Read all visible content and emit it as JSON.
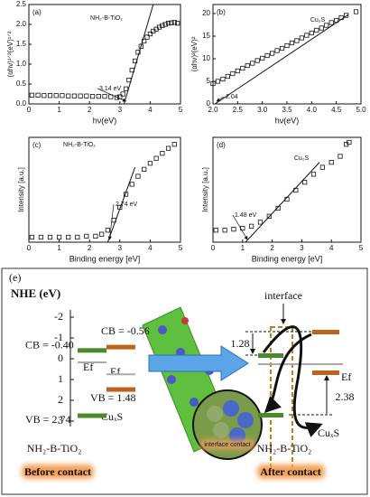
{
  "chart_data": [
    {
      "panel": "(a)",
      "type": "scatter",
      "xlabel": "hν(eV)",
      "ylabel": "(αhν)¹ᐟ²(eV)¹ᐟ²",
      "label": "NH₂-B-TiO₂",
      "annotation": "3.14 eV",
      "x": [
        0.1,
        0.3,
        0.5,
        0.7,
        0.9,
        1.1,
        1.3,
        1.5,
        1.7,
        1.9,
        2.1,
        2.3,
        2.5,
        2.7,
        2.9,
        3.0,
        3.1,
        3.2,
        3.3,
        3.4,
        3.5,
        3.6,
        3.7,
        3.8,
        3.9,
        4.0,
        4.1,
        4.2,
        4.3,
        4.4,
        4.5,
        4.6,
        4.7,
        4.8,
        4.9
      ],
      "values": [
        0.22,
        0.22,
        0.21,
        0.21,
        0.21,
        0.21,
        0.2,
        0.2,
        0.2,
        0.2,
        0.19,
        0.19,
        0.19,
        0.18,
        0.16,
        0.18,
        0.25,
        0.38,
        0.6,
        0.85,
        1.08,
        1.3,
        1.45,
        1.58,
        1.68,
        1.76,
        1.83,
        1.88,
        1.93,
        1.97,
        2.0,
        2.03,
        2.04,
        2.05,
        2.03
      ],
      "fit_x": [
        3.14,
        4.1
      ],
      "fit_y": [
        0,
        2.5
      ],
      "xlim": [
        0,
        5
      ],
      "xticks": [
        0,
        1,
        2,
        3,
        4,
        5
      ],
      "ylim": [
        0,
        2.5
      ],
      "yticks": [
        {
          "value": 0,
          "label": "0.0"
        },
        0.5,
        {
          "value": 1,
          "label": "1.0"
        },
        1.5,
        {
          "value": 2,
          "label": "2.0"
        },
        2.5
      ]
    },
    {
      "panel": "(b)",
      "type": "scatter",
      "xlabel": "hν(eV)",
      "ylabel": "(αhν)²(eV)²",
      "label": "Cu₂S",
      "annotation": "2.04",
      "x": [
        2.0,
        2.1,
        2.2,
        2.3,
        2.4,
        2.5,
        2.6,
        2.7,
        2.8,
        2.9,
        3.0,
        3.1,
        3.2,
        3.3,
        3.4,
        3.5,
        3.6,
        3.7,
        3.8,
        3.9,
        4.0,
        4.1,
        4.2,
        4.3,
        4.4,
        4.5,
        4.6,
        4.7,
        4.9
      ],
      "values": [
        4.5,
        5.0,
        5.5,
        6.1,
        6.7,
        7.3,
        7.9,
        8.5,
        9.0,
        9.6,
        10.1,
        10.7,
        11.2,
        11.8,
        12.3,
        12.9,
        13.5,
        14.0,
        14.6,
        15.2,
        15.7,
        16.3,
        16.8,
        17.4,
        18.0,
        18.5,
        19.1,
        19.6,
        20.4
      ],
      "fit_x": [
        2.04,
        4.75
      ],
      "fit_y": [
        0,
        19.8
      ],
      "xlim": [
        2.0,
        5.0
      ],
      "xticks": [
        {
          "value": 2,
          "label": "2.0"
        },
        2.5,
        {
          "value": 3,
          "label": "3.0"
        },
        3.5,
        {
          "value": 4,
          "label": "4.0"
        },
        4.5,
        {
          "value": 5,
          "label": "5.0"
        }
      ],
      "ylim": [
        0,
        22
      ],
      "yticks": [
        0,
        5,
        10,
        15,
        20
      ]
    },
    {
      "panel": "(c)",
      "type": "scatter",
      "xlabel": "Binding energy [eV]",
      "ylabel": "Intensity [a.u.]",
      "label": "NH₂-B-TiO₂",
      "annotation": "2.74 eV",
      "x": [
        0.1,
        0.4,
        0.7,
        1.0,
        1.3,
        1.6,
        1.9,
        2.2,
        2.4,
        2.6,
        2.8,
        3.0,
        3.2,
        3.4,
        3.6,
        3.8,
        4.0,
        4.2,
        4.4,
        4.6,
        4.8
      ],
      "values": [
        0.05,
        0.05,
        0.05,
        0.05,
        0.05,
        0.05,
        0.06,
        0.06,
        0.08,
        0.12,
        0.22,
        0.35,
        0.48,
        0.58,
        0.66,
        0.73,
        0.79,
        0.84,
        0.89,
        0.94,
        0.98
      ],
      "fit_x": [
        2.6,
        3.5
      ],
      "fit_y": [
        0,
        0.75
      ],
      "xlim": [
        0,
        5
      ],
      "xticks": [
        0,
        1,
        2,
        3,
        4,
        5
      ],
      "ylim": [
        0,
        1.05
      ]
    },
    {
      "panel": "(d)",
      "type": "scatter",
      "xlabel": "Binding energy [eV]",
      "ylabel": "Intensity [a.u.]",
      "label": "Cu₂S",
      "annotation": "1.48 eV",
      "x": [
        0.1,
        0.4,
        0.7,
        1.0,
        1.3,
        1.6,
        1.9,
        2.2,
        2.5,
        2.8,
        3.1,
        3.4,
        3.7,
        4.0,
        4.3,
        4.5,
        4.6
      ],
      "values": [
        0.12,
        0.12,
        0.13,
        0.14,
        0.16,
        0.2,
        0.26,
        0.34,
        0.43,
        0.52,
        0.6,
        0.68,
        0.75,
        0.8,
        0.86,
        0.98,
        1.0
      ],
      "fit_x": [
        1.1,
        3.6
      ],
      "fit_y": [
        0,
        0.8
      ],
      "xlim": [
        0,
        5
      ],
      "xticks": [
        0,
        1,
        2,
        3,
        4,
        5
      ],
      "ylim": [
        0,
        1.05
      ]
    }
  ],
  "diagram": {
    "panel": "(e)",
    "axis_label": "NHE (eV)",
    "axis_ticks": [
      -2,
      -1,
      0,
      1,
      2,
      3
    ],
    "levels": [
      {
        "label": "CB = -0.40",
        "value": -0.4
      },
      {
        "label": "CB = -0.56",
        "value": -0.56
      },
      {
        "label": "VB = 1.48",
        "value": 1.48
      },
      {
        "label": "VB = 2.74",
        "value": 2.74
      }
    ],
    "fermi_before": "Ef",
    "fermi_before_2": "Ef",
    "cu_before": "CuₓS",
    "tio2_before": "NH₂-B-TiO₂",
    "before": "Before contact",
    "interface": "interface",
    "gap_top": "1.28",
    "gap_bottom": "2.38",
    "fermi_after": "Ef",
    "cu_after": "CuₓS",
    "tio2_after": "NH₂-B-TiO₂",
    "after": "After contact",
    "inset": "interface contact"
  }
}
